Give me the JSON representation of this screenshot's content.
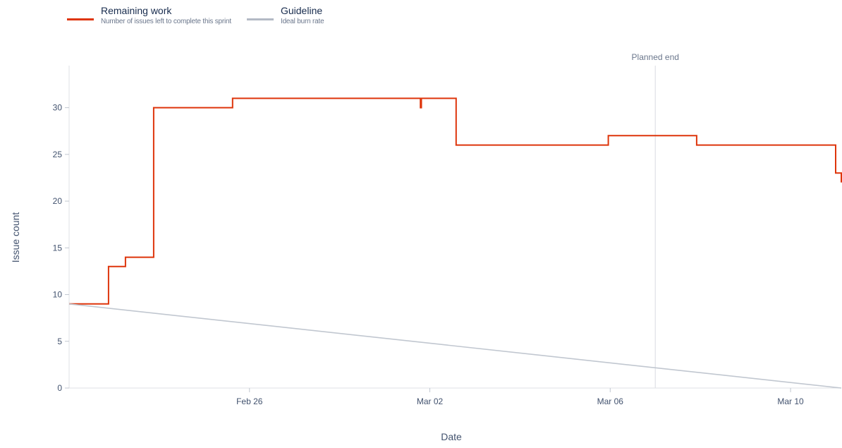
{
  "legend": {
    "remaining": {
      "title": "Remaining work",
      "desc": "Number of issues left to complete this sprint",
      "color": "#de350b"
    },
    "guideline": {
      "title": "Guideline",
      "desc": "Ideal burn rate",
      "color": "#b3bac5"
    }
  },
  "chart_data": {
    "type": "line",
    "title": "",
    "xlabel": "Date",
    "ylabel": "Issue count",
    "ylim": [
      0,
      34.5
    ],
    "yticks": [
      0,
      5,
      10,
      15,
      20,
      25,
      30
    ],
    "xlim": [
      "Feb 22 00:00",
      "Mar 11 03:00"
    ],
    "xticks": [
      {
        "label": "Feb 26",
        "date": "Feb 26"
      },
      {
        "label": "Mar 02",
        "date": "Mar 02"
      },
      {
        "label": "Mar 06",
        "date": "Mar 06"
      },
      {
        "label": "Mar 10",
        "date": "Mar 10"
      }
    ],
    "grid": false,
    "annotations": [
      {
        "label": "Planned end",
        "x": "Mar 07 00:00"
      }
    ],
    "series": [
      {
        "name": "Remaining work",
        "color": "#de350b",
        "step": true,
        "points": [
          [
            "Feb 22 00:00",
            9
          ],
          [
            "Feb 22 21:00",
            13
          ],
          [
            "Feb 23 06:00",
            14
          ],
          [
            "Feb 23 21:00",
            30
          ],
          [
            "Feb 25 15:00",
            31
          ],
          [
            "Mar 01 19:00",
            30
          ],
          [
            "Mar 01 19:30",
            31
          ],
          [
            "Mar 02 14:00",
            26
          ],
          [
            "Mar 05 23:00",
            27
          ],
          [
            "Mar 07 22:00",
            26
          ],
          [
            "Mar 11 00:00",
            23
          ],
          [
            "Mar 11 03:00",
            22
          ]
        ]
      },
      {
        "name": "Guideline",
        "color": "#c1c7d0",
        "step": false,
        "points": [
          [
            "Feb 22 00:00",
            9
          ],
          [
            "Mar 11 03:00",
            0
          ]
        ]
      }
    ]
  }
}
